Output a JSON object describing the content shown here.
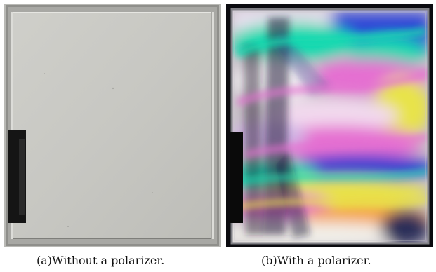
{
  "figure": {
    "panels": [
      {
        "id": "a",
        "caption": "(a)Without a polarizer.",
        "subject": "plastic-panel-photo-plain"
      },
      {
        "id": "b",
        "caption": "(b)With a polarizer.",
        "subject": "plastic-panel-photo-stress-birefringence"
      }
    ],
    "colors": {
      "frame_gray": "#9a9a96",
      "panel_gray": "#c9c9c4",
      "background_dark": "#0b0b10",
      "fringe_green": "#19d9b0",
      "fringe_magenta": "#e56fd1",
      "fringe_yellow": "#e8e34a",
      "fringe_blue": "#3f4fd8"
    }
  }
}
